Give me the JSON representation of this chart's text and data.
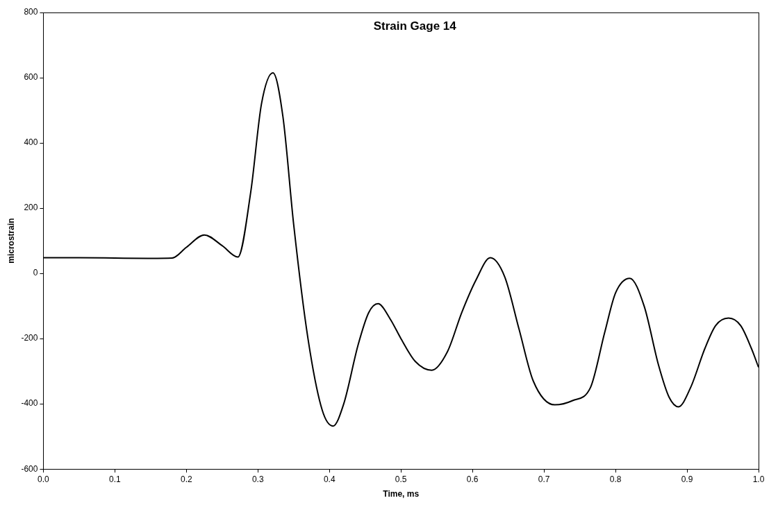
{
  "chart_data": {
    "type": "line",
    "title": "Strain Gage 14",
    "xlabel": "Time, ms",
    "ylabel": "microstrain",
    "x": [
      0,
      0.05,
      0.1,
      0.15,
      0.18,
      0.2,
      0.225,
      0.25,
      0.272,
      0.29,
      0.305,
      0.321,
      0.335,
      0.35,
      0.37,
      0.39,
      0.405,
      0.42,
      0.44,
      0.455,
      0.468,
      0.485,
      0.5,
      0.52,
      0.543,
      0.565,
      0.585,
      0.605,
      0.625,
      0.645,
      0.665,
      0.685,
      0.715,
      0.74,
      0.765,
      0.785,
      0.8,
      0.82,
      0.84,
      0.86,
      0.875,
      0.888,
      0.905,
      0.925,
      0.94,
      0.958,
      0.975,
      0.99,
      1.0
    ],
    "series": [
      {
        "color": "#000000",
        "values": [
          48,
          48,
          47,
          46,
          47,
          80,
          118,
          85,
          50,
          250,
          520,
          615,
          480,
          150,
          -200,
          -420,
          -468,
          -400,
          -220,
          -120,
          -93,
          -140,
          -200,
          -270,
          -297,
          -240,
          -120,
          -20,
          48,
          -10,
          -170,
          -330,
          -403,
          -390,
          -350,
          -180,
          -60,
          -15,
          -100,
          -280,
          -380,
          -409,
          -350,
          -230,
          -160,
          -137,
          -160,
          -230,
          -288
        ]
      }
    ],
    "xlim": [
      0,
      1
    ],
    "xticks": [
      {
        "value": 0,
        "label": "0.0"
      },
      {
        "value": 0.1,
        "label": "0.1"
      },
      {
        "value": 0.2,
        "label": "0.2"
      },
      {
        "value": 0.3,
        "label": "0.3"
      },
      {
        "value": 0.4,
        "label": "0.4"
      },
      {
        "value": 0.5,
        "label": "0.5"
      },
      {
        "value": 0.6,
        "label": "0.6"
      },
      {
        "value": 0.7,
        "label": "0.7"
      },
      {
        "value": 0.8,
        "label": "0.8"
      },
      {
        "value": 0.9,
        "label": "0.9"
      },
      {
        "value": 1,
        "label": "1.0"
      }
    ],
    "ylim": [
      -600,
      800
    ],
    "yticks": [
      -600,
      -400,
      -200,
      0,
      200,
      400,
      600,
      800
    ],
    "grid": false,
    "legend": false,
    "marker": "none",
    "line_style": "solid"
  }
}
